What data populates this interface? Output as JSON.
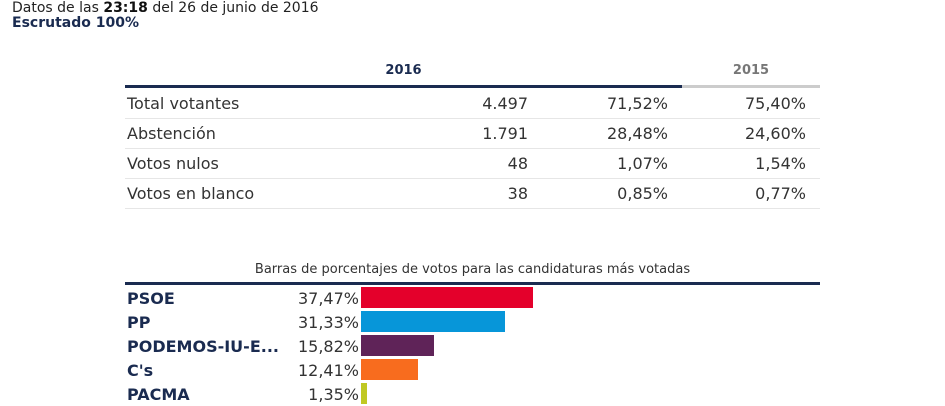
{
  "header": {
    "prefix": "Datos de las ",
    "time": "23:18",
    "suffix": " del 26 de junio de 2016",
    "scrutiny": "Escrutado 100%"
  },
  "table": {
    "year_current": "2016",
    "year_previous": "2015",
    "rows": [
      {
        "label": "Total votantes",
        "value": "4.497",
        "pct": "71,52%",
        "prev": "75,40%"
      },
      {
        "label": "Abstención",
        "value": "1.791",
        "pct": "28,48%",
        "prev": "24,60%"
      },
      {
        "label": "Votos nulos",
        "value": "48",
        "pct": "1,07%",
        "prev": "1,54%"
      },
      {
        "label": "Votos en blanco",
        "value": "38",
        "pct": "0,85%",
        "prev": "0,77%"
      }
    ]
  },
  "chart_data": {
    "type": "bar",
    "orientation": "horizontal",
    "title": "Barras de porcentajes de votos para las candidaturas más votadas",
    "categories": [
      "PSOE",
      "PP",
      "PODEMOS-IU-E...",
      "C's",
      "PACMA"
    ],
    "labels": [
      "37,47%",
      "31,33%",
      "15,82%",
      "12,41%",
      "1,35%"
    ],
    "values": [
      37.47,
      31.33,
      15.82,
      12.41,
      1.35
    ],
    "colors": [
      "#e4002b",
      "#0796d9",
      "#5f2358",
      "#f86c1e",
      "#c0c823"
    ],
    "unit": "%"
  }
}
